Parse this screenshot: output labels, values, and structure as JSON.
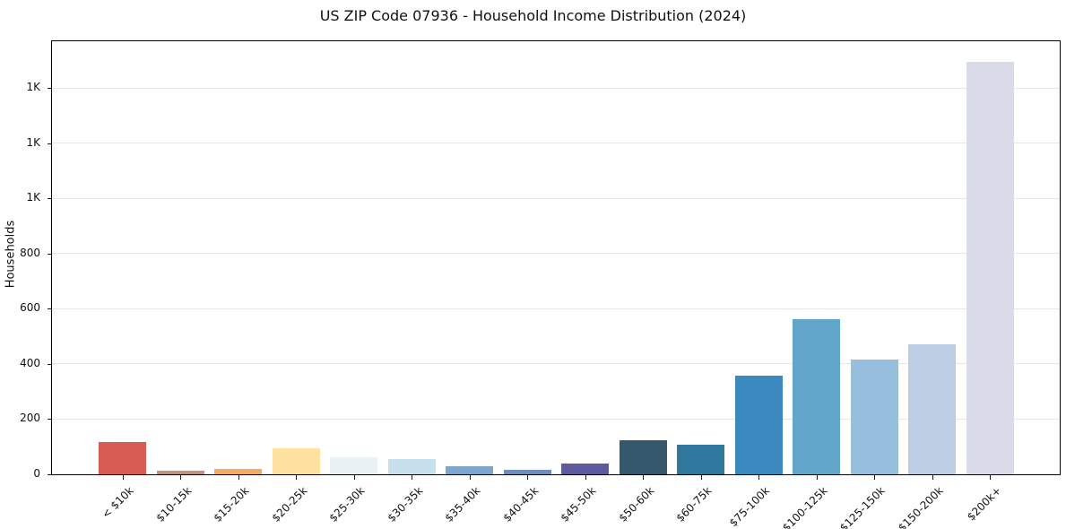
{
  "title": "US ZIP Code 07936 - Household Income Distribution (2024)",
  "chart_data": {
    "type": "bar",
    "title": "US ZIP Code 07936 - Household Income Distribution (2024)",
    "xlabel": "",
    "ylabel": "Households",
    "ylim": [
      0,
      1570
    ],
    "grid": "horizontal-light-gray",
    "legend": "none",
    "categories": [
      "< $10k",
      "$10-15k",
      "$15-20k",
      "$20-25k",
      "$25-30k",
      "$30-35k",
      "$35-40k",
      "$40-45k",
      "$45-50k",
      "$50-60k",
      "$60-75k",
      "$75-100k",
      "$100-125k",
      "$125-150k",
      "$150-200k",
      "$200k+"
    ],
    "values": [
      116,
      12,
      20,
      95,
      62,
      54,
      28,
      16,
      38,
      125,
      106,
      358,
      562,
      415,
      472,
      1494
    ],
    "bar_colors": [
      "#d95c53",
      "#c68f7e",
      "#f5ab66",
      "#fce29e",
      "#e9f2f4",
      "#c6e0ec",
      "#7ca6cd",
      "#6e8cbe",
      "#5d5aa0",
      "#35586d",
      "#30789d",
      "#3a8ac0",
      "#63a6cb",
      "#96bedd",
      "#bdcde3",
      "#d9dbe8"
    ],
    "yticks": [
      {
        "value": 0,
        "label": "0"
      },
      {
        "value": 200,
        "label": "200"
      },
      {
        "value": 400,
        "label": "400"
      },
      {
        "value": 600,
        "label": "600"
      },
      {
        "value": 800,
        "label": "800"
      },
      {
        "value": 1000,
        "label": "1K"
      },
      {
        "value": 1200,
        "label": "1K"
      },
      {
        "value": 1400,
        "label": "1K"
      }
    ],
    "x_tick_rotation_deg": -45,
    "spine_color": "#000000",
    "gridline_color": "#e7e7e7",
    "background_color": "#ffffff"
  }
}
